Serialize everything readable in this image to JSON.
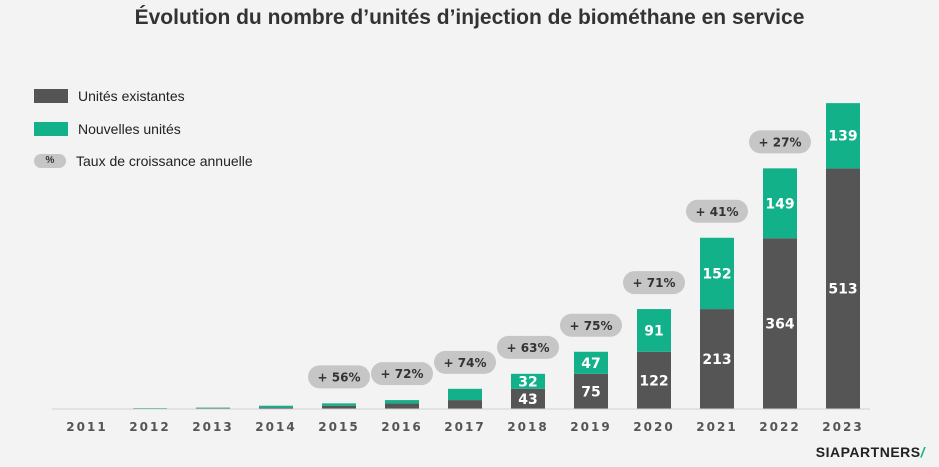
{
  "chart_data": {
    "type": "bar",
    "stacked": true,
    "title": "Évolution du nombre d’unités d’injection de biométhane en service",
    "categories": [
      "2011",
      "2012",
      "2013",
      "2014",
      "2015",
      "2016",
      "2017",
      "2018",
      "2019",
      "2020",
      "2021",
      "2022",
      "2023"
    ],
    "series": [
      {
        "name": "Unités existantes",
        "color": "#555555",
        "values": [
          0,
          1,
          2,
          3,
          7,
          12,
          19,
          43,
          75,
          122,
          213,
          364,
          513
        ],
        "labels": [
          "",
          "",
          "",
          "",
          "",
          "",
          "",
          "43",
          "75",
          "122",
          "213",
          "364",
          "513"
        ]
      },
      {
        "name": "Nouvelles unités",
        "color": "#13b18a",
        "values": [
          1,
          1,
          1,
          4,
          5,
          7,
          24,
          32,
          47,
          91,
          152,
          149,
          139
        ],
        "labels": [
          "",
          "",
          "",
          "",
          "",
          "",
          "",
          "32",
          "47",
          "91",
          "152",
          "149",
          "139"
        ]
      }
    ],
    "growth_rates": [
      "",
      "",
      "",
      "",
      "+ 56%",
      "+ 72%",
      "+ 74%",
      "+ 63%",
      "+ 75%",
      "+ 71%",
      "+ 41%",
      "+ 27%",
      ""
    ],
    "growth_legend": {
      "symbol": "%",
      "label": "Taux de croissance annuelle"
    },
    "ylim": [
      0,
      680
    ],
    "grid": false,
    "legend_position": "top-left"
  },
  "brand": {
    "name": "SIAPARTNERS",
    "mark": "/"
  }
}
